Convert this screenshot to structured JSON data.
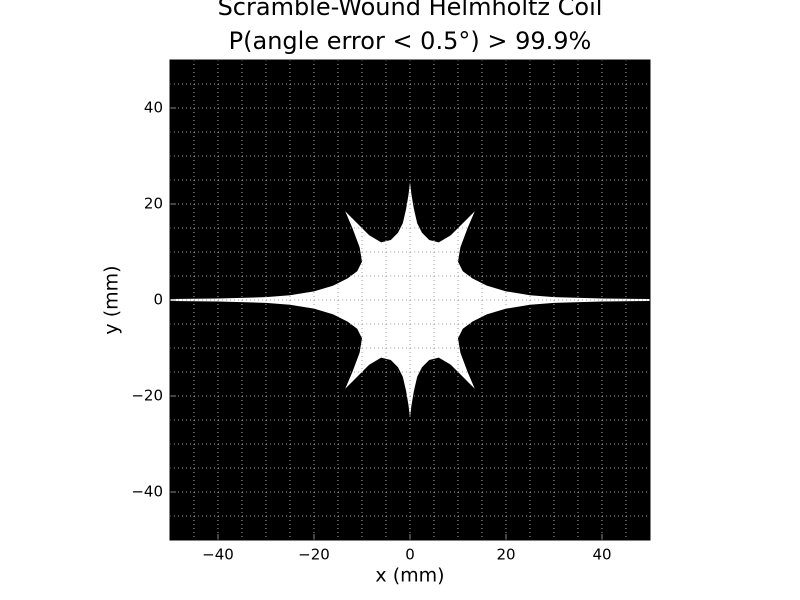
{
  "chart_data": {
    "type": "region",
    "title": [
      "Scramble-Wound Helmholtz Coil",
      "P(angle error < 0.5°) > 99.9%"
    ],
    "xlabel": "x (mm)",
    "ylabel": "y (mm)",
    "background": "#000000",
    "color": "#ffffff",
    "grid": true,
    "grid_color": "#a0a0a0",
    "xlim": [
      -50,
      50
    ],
    "ylim": [
      -50,
      50
    ],
    "xticks": [
      {
        "value": -40,
        "label": "−40"
      },
      {
        "value": -20,
        "label": "−20"
      },
      0,
      20,
      40
    ],
    "yticks": [
      {
        "value": -40,
        "label": "−40"
      },
      {
        "value": -20,
        "label": "−20"
      },
      0,
      20,
      40
    ],
    "xminorticks": [
      -45,
      -40,
      -35,
      -30,
      -25,
      -20,
      -15,
      -10,
      -5,
      0,
      5,
      10,
      15,
      20,
      25,
      30,
      35,
      40,
      45
    ],
    "yminorticks": [
      -45,
      -40,
      -35,
      -30,
      -25,
      -20,
      -15,
      -10,
      -5,
      0,
      5,
      10,
      15,
      20,
      25,
      30,
      35,
      40,
      45
    ],
    "x": [
      50,
      40,
      30,
      25,
      20,
      16,
      13,
      11,
      10,
      10.5,
      12,
      13.5,
      11,
      8.5,
      6,
      4,
      2.5,
      1.5,
      0.8,
      0.3,
      0,
      -0.3,
      -0.8,
      -1.5,
      -2.5,
      -4,
      -6,
      -8.5,
      -11,
      -13.5,
      -12,
      -10.5,
      -10,
      -11,
      -13,
      -16,
      -20,
      -25,
      -30,
      -40,
      -50,
      -50,
      -40,
      -30,
      -25,
      -20,
      -16,
      -13,
      -11,
      -10,
      -10.5,
      -12,
      -13.5,
      -11,
      -8.5,
      -6,
      -4,
      -2.5,
      -1.5,
      -0.8,
      -0.3,
      0,
      0.3,
      0.8,
      1.5,
      2.5,
      4,
      6,
      8.5,
      11,
      13.5,
      12,
      10.5,
      10,
      11,
      13,
      16,
      20,
      25,
      30,
      40,
      50
    ],
    "values": [
      0.2,
      0.3,
      0.6,
      1,
      1.8,
      3,
      4.5,
      6,
      8,
      11,
      15,
      18.5,
      16,
      13.5,
      12,
      12.5,
      14,
      16,
      19,
      22,
      24.5,
      22,
      19,
      16,
      14,
      12.5,
      12,
      13.5,
      16,
      18.5,
      15,
      11,
      8,
      6,
      4.5,
      3,
      1.8,
      1,
      0.6,
      0.3,
      0.2,
      -0.2,
      -0.3,
      -0.6,
      -1,
      -1.8,
      -3,
      -4.5,
      -6,
      -8,
      -11,
      -15,
      -18.5,
      -16,
      -13.5,
      -12,
      -12.5,
      -14,
      -16,
      -19,
      -22,
      -24.5,
      -22,
      -19,
      -16,
      -14,
      -12.5,
      -12,
      -13.5,
      -16,
      -18.5,
      -15,
      -11,
      -8,
      -6,
      -4.5,
      -3,
      -1.8,
      -1,
      -0.6,
      -0.3,
      -0.2
    ]
  }
}
